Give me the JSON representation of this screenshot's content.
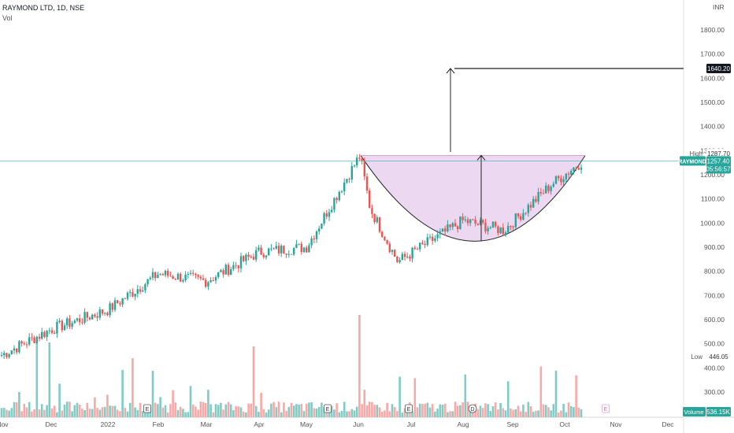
{
  "header": {
    "title": "RAYMOND LTD, 1D, NSE",
    "volume_label": "Vol"
  },
  "axis": {
    "currency": "INR"
  },
  "chart_data": {
    "type": "candlestick",
    "symbol": "RAYMOND",
    "exchange": "NSE",
    "interval": "1D",
    "ylim": [
      220,
      1930
    ],
    "y_ticks": [
      300,
      400,
      500,
      600,
      700,
      800,
      900,
      1000,
      1100,
      1200,
      1300,
      1400,
      1500,
      1600,
      1700,
      1800
    ],
    "x_ticks": [
      "Nov",
      "Dec",
      "2022",
      "Feb",
      "Mar",
      "Apr",
      "May",
      "Jun",
      "Jul",
      "Aug",
      "Sep",
      "Oct",
      "Nov",
      "Dec"
    ],
    "anchors": [
      [
        "Nov",
        450
      ],
      [
        "Dec",
        560
      ],
      [
        "2022",
        640
      ],
      [
        "Feb",
        790
      ],
      [
        "Mar",
        760
      ],
      [
        "Apr",
        880
      ],
      [
        "May",
        900
      ],
      [
        "Jun",
        1280
      ],
      [
        "Jun",
        1060
      ],
      [
        "Jul",
        840
      ],
      [
        "Aug",
        1010
      ],
      [
        "Sep",
        970
      ],
      [
        "Oct",
        1160
      ],
      [
        "Oct",
        1257
      ]
    ],
    "price_labels": [
      {
        "label": "High",
        "value": "1287.70"
      },
      {
        "label": "RAYMOND",
        "value": "1257.40",
        "countdown": "05:56:57"
      },
      {
        "label": "Low",
        "value": "446.05"
      },
      {
        "label": "Volume",
        "value": "536.15K"
      },
      {
        "label": "Target",
        "value": "1640.20"
      }
    ],
    "event_markers": [
      "E",
      "E",
      "E",
      "D",
      "E",
      "E"
    ],
    "annotations": {
      "cup_top_price": 1280,
      "cup_bottom_price": 925,
      "target_price": 1640.2
    },
    "colors": {
      "up": "#26a69a",
      "down": "#ef5350",
      "vol_up": "#80cbc4",
      "vol_down": "#f7a9a7",
      "cup_fill": "#e1bee7",
      "last_price": "#26a69a"
    }
  }
}
